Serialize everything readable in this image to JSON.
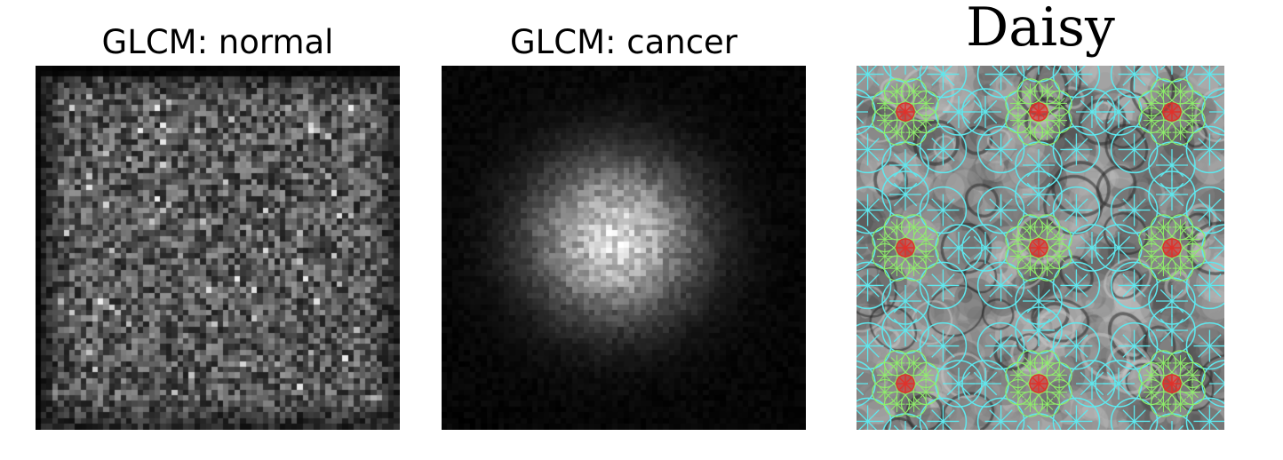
{
  "panels": [
    {
      "title": "GLCM: normal",
      "pattern": "uniform-noise",
      "colormap": "grayscale"
    },
    {
      "title": "GLCM: cancer",
      "pattern": "central-blob",
      "colormap": "grayscale"
    },
    {
      "title": "Daisy",
      "pattern": "daisy-descriptors-over-tissue",
      "colors": {
        "outer_rings": "#5ee8ee",
        "middle_rings": "#8ef06a",
        "centers": "#e0312a"
      }
    }
  ]
}
